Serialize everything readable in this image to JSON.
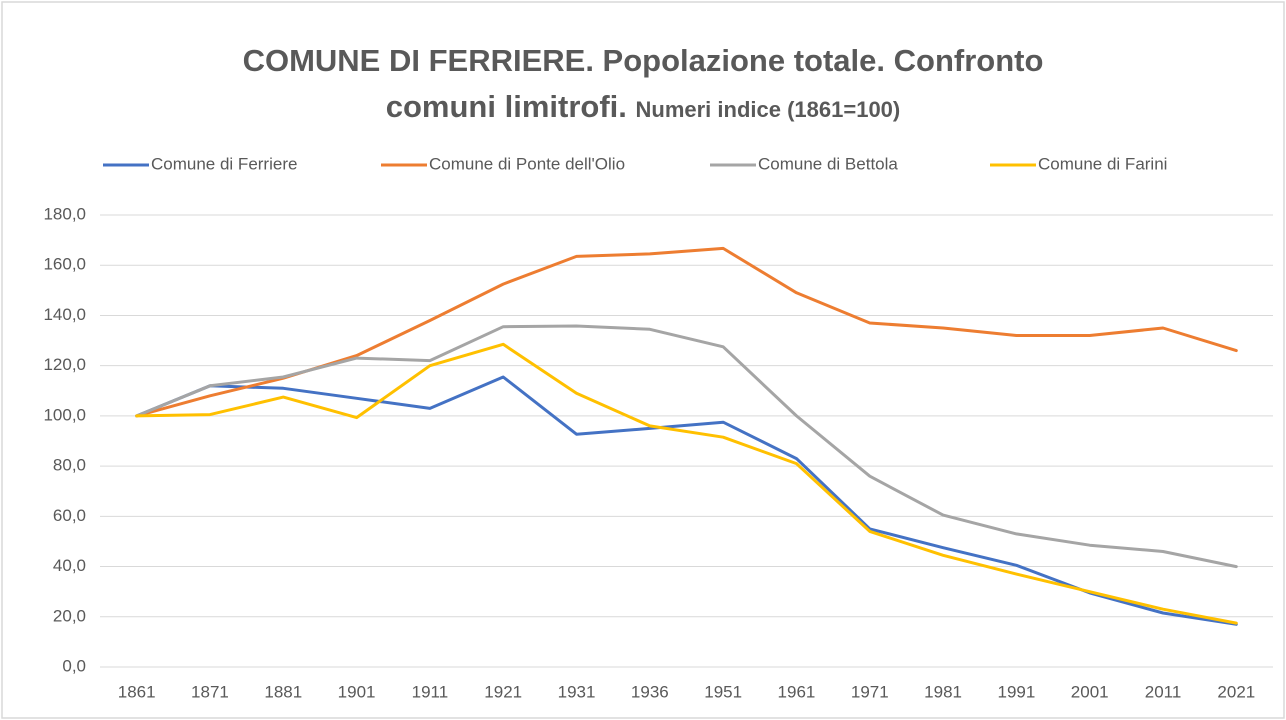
{
  "chart_data": {
    "type": "line",
    "title": "COMUNE DI FERRIERE. Popolazione totale. Confronto comuni limitrofi.",
    "subtitle": "Numeri indice (1861=100)",
    "categories": [
      "1861",
      "1871",
      "1881",
      "1901",
      "1911",
      "1921",
      "1931",
      "1936",
      "1951",
      "1961",
      "1971",
      "1981",
      "1991",
      "2001",
      "2011",
      "2021"
    ],
    "series": [
      {
        "name": "Comune di Ferriere",
        "color": "#4472c4",
        "values": [
          100,
          112,
          111,
          107,
          103,
          115.5,
          92.7,
          95,
          97.5,
          83,
          55,
          47.5,
          40.5,
          29.5,
          21.5,
          17
        ]
      },
      {
        "name": "Comune di Ponte dell'Olio",
        "color": "#ed7d31",
        "values": [
          100,
          108,
          115,
          124,
          138,
          152.5,
          163.5,
          164.5,
          166.7,
          149,
          137,
          135,
          132,
          132,
          135,
          126
        ]
      },
      {
        "name": "Comune di Bettola",
        "color": "#a5a5a5",
        "values": [
          100,
          112,
          115.5,
          123,
          122,
          135.5,
          135.8,
          134.5,
          127.5,
          100,
          76,
          60.5,
          53,
          48.5,
          46,
          40
        ]
      },
      {
        "name": "Comune di Farini",
        "color": "#ffc000",
        "values": [
          100,
          100.5,
          107.5,
          99.3,
          120,
          128.5,
          109,
          96,
          91.5,
          81,
          54,
          44.5,
          37,
          30,
          23,
          17.5
        ]
      }
    ],
    "ylim": [
      0,
      180
    ],
    "yticks": [
      {
        "value": 0,
        "label": "0,0"
      },
      {
        "value": 20,
        "label": "20,0"
      },
      {
        "value": 40,
        "label": "40,0"
      },
      {
        "value": 60,
        "label": "60,0"
      },
      {
        "value": 80,
        "label": "80,0"
      },
      {
        "value": 100,
        "label": "100,0"
      },
      {
        "value": 120,
        "label": "120,0"
      },
      {
        "value": 140,
        "label": "140,0"
      },
      {
        "value": 160,
        "label": "160,0"
      },
      {
        "value": 180,
        "label": "180,0"
      }
    ],
    "grid": true,
    "legend": "top"
  }
}
